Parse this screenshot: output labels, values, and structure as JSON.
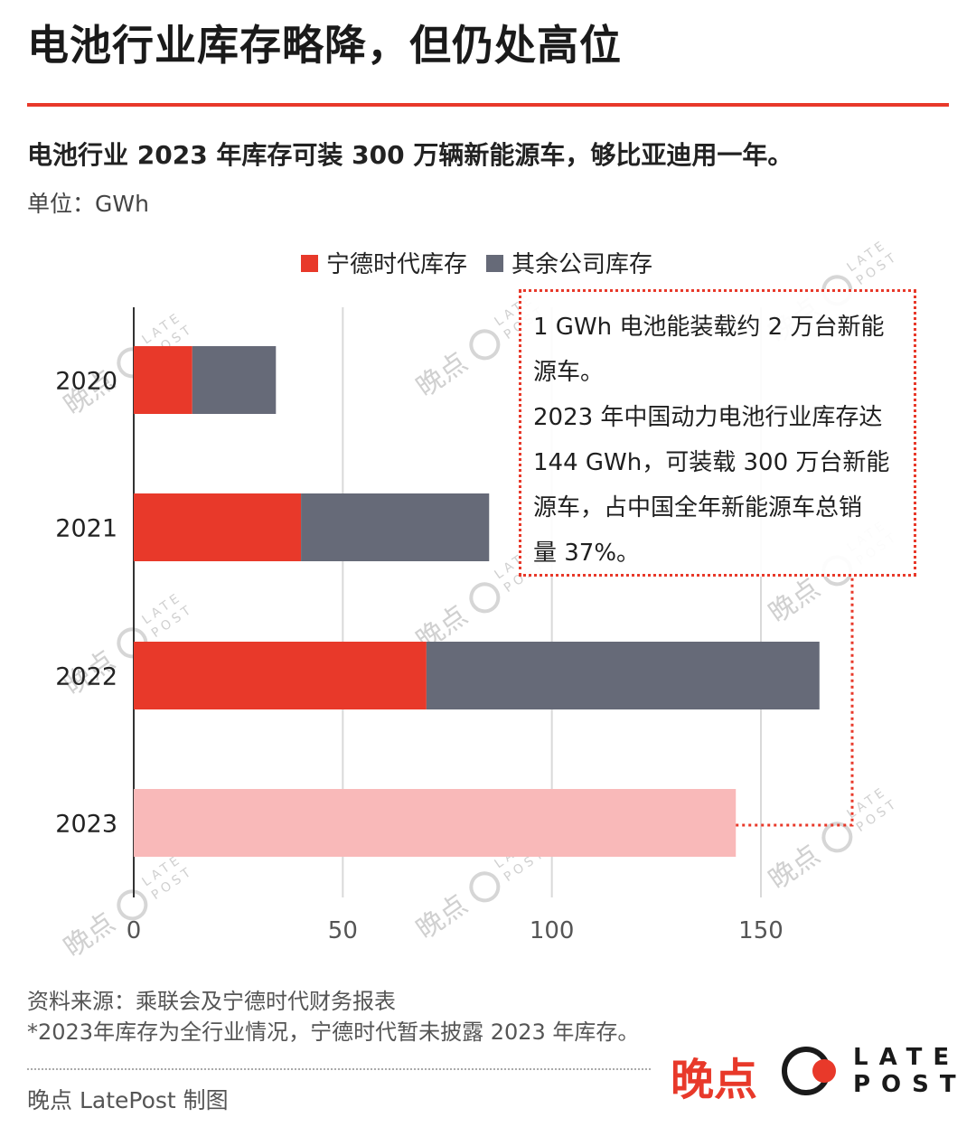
{
  "header": {
    "title": "电池行业库存略降，但仍处高位",
    "subtitle": "电池行业 2023 年库存可装 300 万辆新能源车，够比亚迪用一年。",
    "unit": "单位：GWh"
  },
  "chart_data": {
    "type": "bar",
    "orientation": "horizontal",
    "stacked": true,
    "categories": [
      "2020",
      "2021",
      "2022",
      "2023"
    ],
    "series": [
      {
        "name": "宁德时代库存",
        "color": "#e8392a",
        "values": [
          14,
          40,
          70,
          null
        ]
      },
      {
        "name": "其余公司库存",
        "color": "#666a78",
        "values": [
          20,
          45,
          94,
          null
        ]
      }
    ],
    "industry_total_2023": {
      "value": 144,
      "color": "#f9b9b9"
    },
    "xlim": [
      0,
      175
    ],
    "xticks": [
      0,
      50,
      100,
      150
    ],
    "grid": true,
    "legend_position": "top"
  },
  "annotation": {
    "lines": [
      "1 GWh 电池能装载约 2 万台新能",
      "源车。",
      "2023 年中国动力电池行业库存达",
      "144 GWh，可装载 300 万台新能",
      "源车，占中国全年新能源车总销",
      "量 37%。"
    ]
  },
  "footer": {
    "source": "资料来源：乘联会及宁德时代财务报表",
    "footnote": "*2023年库存为全行业情况，宁德时代暂未披露 2023 年库存。",
    "credit": "晚点 LatePost 制图",
    "logo_cn": "晚点",
    "logo_en_top": "LATE",
    "logo_en_bottom": "POST"
  },
  "watermark": {
    "cn": "晚点",
    "en_top": "LATE",
    "en_bottom": "POST"
  }
}
